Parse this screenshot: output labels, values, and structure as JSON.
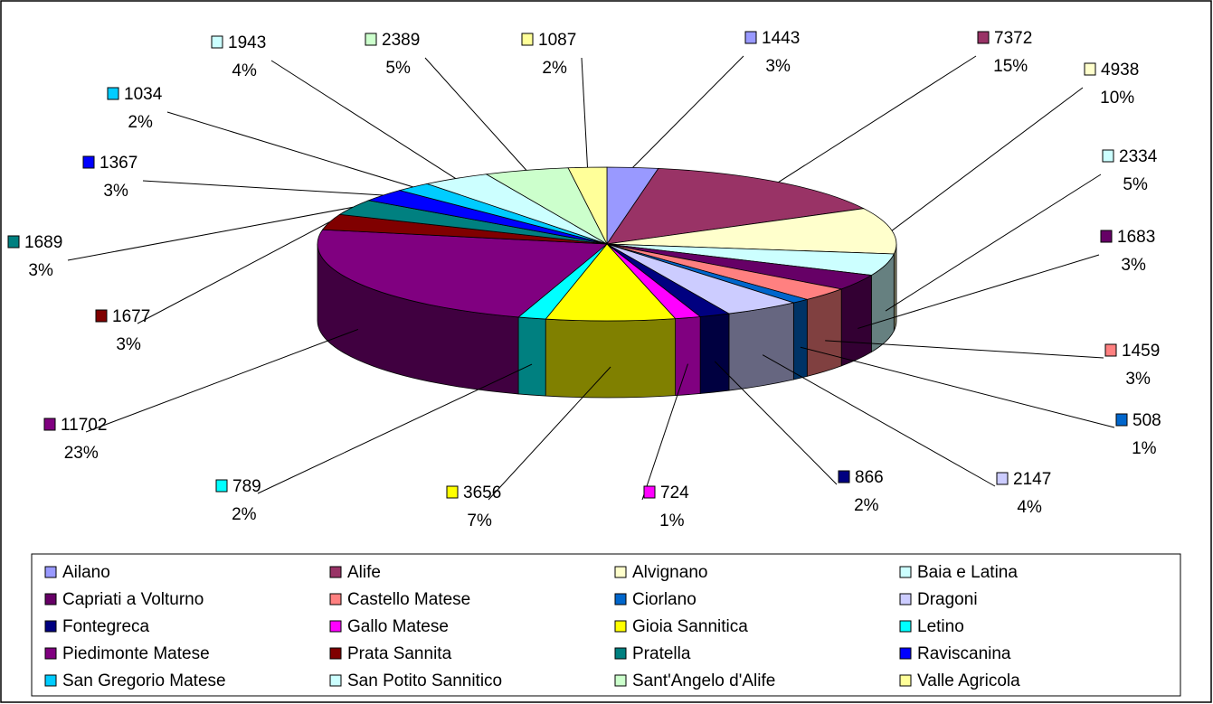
{
  "chart_data": {
    "type": "pie3d",
    "categories": [
      "Ailano",
      "Alife",
      "Alvignano",
      "Baia e Latina",
      "Capriati a Volturno",
      "Castello Matese",
      "Ciorlano",
      "Dragoni",
      "Fontegreca",
      "Gallo Matese",
      "Gioia Sannitica",
      "Letino",
      "Piedimonte Matese",
      "Prata Sannita",
      "Pratella",
      "Raviscanina",
      "San Gregorio Matese",
      "San Potito Sannitico",
      "Sant'Angelo d'Alife",
      "Valle Agricola"
    ],
    "values": [
      1443,
      7372,
      4938,
      2334,
      1683,
      1459,
      508,
      2147,
      866,
      724,
      3656,
      789,
      11702,
      1677,
      1689,
      1367,
      1034,
      1943,
      2389,
      1087
    ],
    "percent_labels": [
      "3%",
      "15%",
      "10%",
      "5%",
      "3%",
      "3%",
      "1%",
      "4%",
      "2%",
      "1%",
      "7%",
      "2%",
      "23%",
      "3%",
      "3%",
      "3%",
      "2%",
      "4%",
      "5%",
      "2%"
    ],
    "colors": [
      "#9999FF",
      "#993366",
      "#FFFFCC",
      "#CCFFFF",
      "#660066",
      "#FF8080",
      "#0066CC",
      "#CCCCFF",
      "#000080",
      "#FF00FF",
      "#FFFF00",
      "#00FFFF",
      "#800080",
      "#800000",
      "#008080",
      "#0000FF",
      "#00CCFF",
      "#CCFFFF",
      "#CCFFCC",
      "#FFFF99"
    ],
    "legend": "bottom"
  }
}
